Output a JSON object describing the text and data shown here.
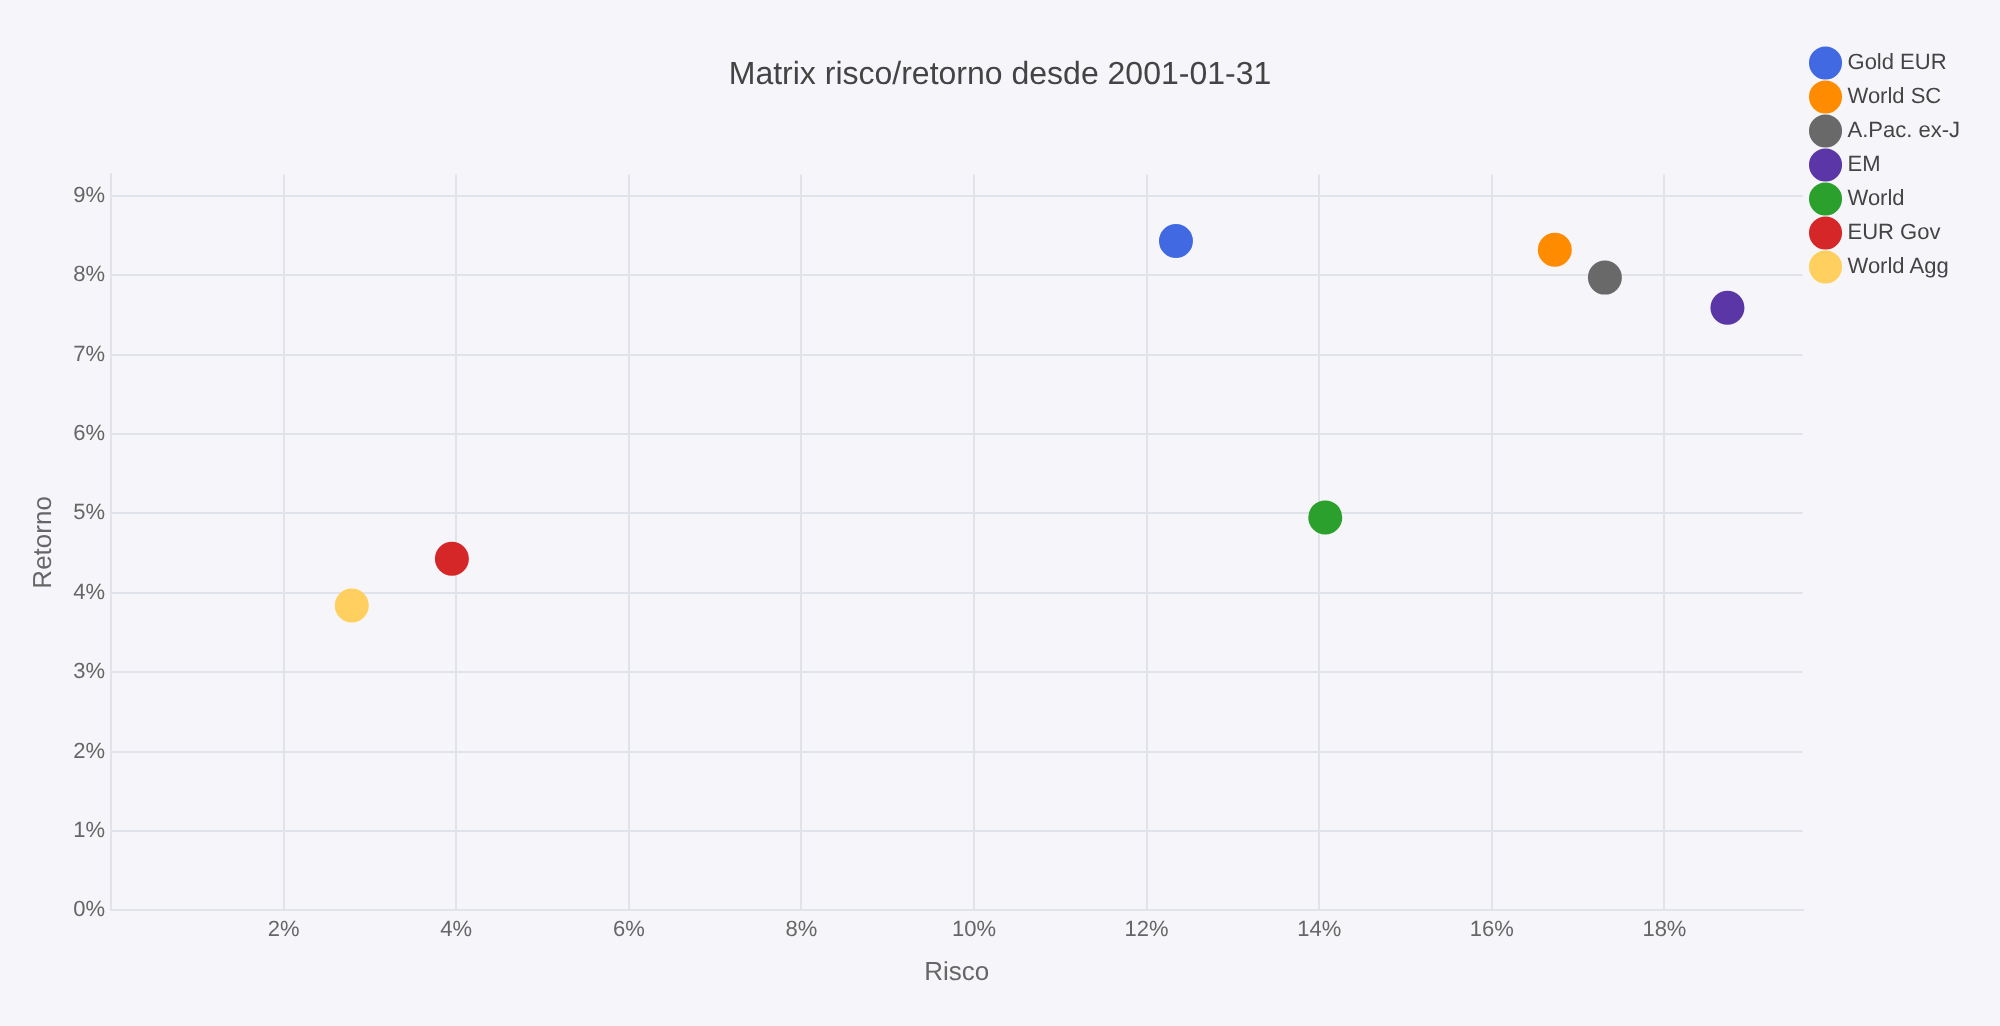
{
  "chart_data": {
    "type": "scatter",
    "title": "Matrix risco/retorno desde 2001-01-31",
    "xlabel": "Risco",
    "ylabel": "Retorno",
    "xlim": [
      0,
      19.6
    ],
    "ylim": [
      0,
      9.27
    ],
    "xticks": [
      {
        "value": 2,
        "label": "2%"
      },
      {
        "value": 4,
        "label": "4%"
      },
      {
        "value": 6,
        "label": "6%"
      },
      {
        "value": 8,
        "label": "8%"
      },
      {
        "value": 10,
        "label": "10%"
      },
      {
        "value": 12,
        "label": "12%"
      },
      {
        "value": 14,
        "label": "14%"
      },
      {
        "value": 16,
        "label": "16%"
      },
      {
        "value": 18,
        "label": "18%"
      }
    ],
    "yticks": [
      {
        "value": 0,
        "label": "0%"
      },
      {
        "value": 1,
        "label": "1%"
      },
      {
        "value": 2,
        "label": "2%"
      },
      {
        "value": 3,
        "label": "3%"
      },
      {
        "value": 4,
        "label": "4%"
      },
      {
        "value": 5,
        "label": "5%"
      },
      {
        "value": 6,
        "label": "6%"
      },
      {
        "value": 7,
        "label": "7%"
      },
      {
        "value": 8,
        "label": "8%"
      },
      {
        "value": 9,
        "label": "9%"
      }
    ],
    "grid": true,
    "legend": "top right",
    "marker": "circle",
    "series": [
      {
        "name": "Gold EUR",
        "color": "#4169e1",
        "x": [
          12.34
        ],
        "values": [
          8.43
        ]
      },
      {
        "name": "World SC",
        "color": "#ff8c00",
        "x": [
          16.73
        ],
        "values": [
          8.32
        ]
      },
      {
        "name": "A.Pac. ex-J",
        "color": "#696969",
        "x": [
          17.31
        ],
        "values": [
          7.97
        ]
      },
      {
        "name": "EM",
        "color": "#5b36a6",
        "x": [
          18.73
        ],
        "values": [
          7.59
        ]
      },
      {
        "name": "World",
        "color": "#2ca02c",
        "x": [
          14.07
        ],
        "values": [
          4.95
        ]
      },
      {
        "name": "EUR Gov",
        "color": "#d62728",
        "x": [
          3.95
        ],
        "values": [
          4.43
        ]
      },
      {
        "name": "World Agg",
        "color": "#ffcf5f",
        "x": [
          2.79
        ],
        "values": [
          3.84
        ]
      }
    ]
  }
}
